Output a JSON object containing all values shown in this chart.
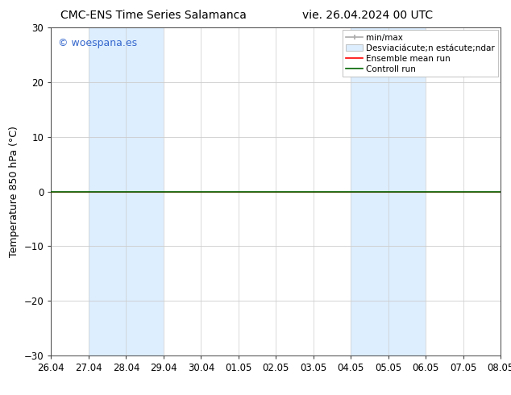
{
  "title_left": "CMC-ENS Time Series Salamanca",
  "title_right": "vie. 26.04.2024 00 UTC",
  "ylabel": "Temperature 850 hPa (°C)",
  "ylim": [
    -30,
    30
  ],
  "yticks": [
    -30,
    -20,
    -10,
    0,
    10,
    20,
    30
  ],
  "xtick_labels": [
    "26.04",
    "27.04",
    "28.04",
    "29.04",
    "30.04",
    "01.05",
    "02.05",
    "03.05",
    "04.05",
    "05.05",
    "06.05",
    "07.05",
    "08.05"
  ],
  "bg_color": "#ffffff",
  "plot_bg_color": "#ffffff",
  "shaded_regions": [
    {
      "xmin": 1.0,
      "xmax": 3.0,
      "color": "#ddeeff"
    },
    {
      "xmin": 8.0,
      "xmax": 10.0,
      "color": "#ddeeff"
    }
  ],
  "control_run_y": 0.0,
  "ensemble_mean_y": 0.0,
  "legend_label_minmax": "min/max",
  "legend_label_std": "Desviaciácute;n estácute;ndar",
  "legend_label_ensemble": "Ensemble mean run",
  "legend_label_control": "Controll run",
  "color_minmax": "#aaaaaa",
  "color_std": "#ddeeff",
  "color_ensemble": "#ff0000",
  "color_control": "#006400",
  "watermark_text": "© woespana.es",
  "watermark_color": "#3366cc",
  "grid_color": "#cccccc",
  "axis_color": "#444444",
  "tick_fontsize": 8.5,
  "ylabel_fontsize": 9,
  "title_fontsize": 10,
  "legend_fontsize": 7.5
}
